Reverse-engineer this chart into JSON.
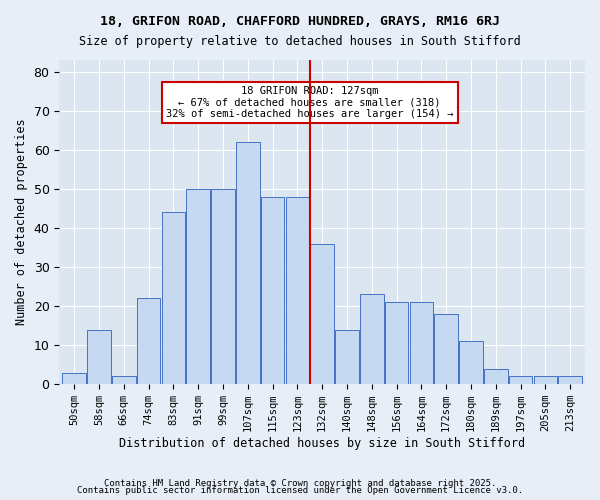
{
  "title1": "18, GRIFON ROAD, CHAFFORD HUNDRED, GRAYS, RM16 6RJ",
  "title2": "Size of property relative to detached houses in South Stifford",
  "xlabel": "Distribution of detached houses by size in South Stifford",
  "ylabel": "Number of detached properties",
  "footnote1": "Contains HM Land Registry data © Crown copyright and database right 2025.",
  "footnote2": "Contains public sector information licensed under the Open Government Licence v3.0.",
  "bar_labels": [
    "50sqm",
    "58sqm",
    "66sqm",
    "74sqm",
    "83sqm",
    "91sqm",
    "99sqm",
    "107sqm",
    "115sqm",
    "123sqm",
    "132sqm",
    "140sqm",
    "148sqm",
    "156sqm",
    "164sqm",
    "172sqm",
    "180sqm",
    "189sqm",
    "197sqm",
    "205sqm",
    "213sqm"
  ],
  "bar_values": [
    3,
    14,
    2,
    22,
    44,
    50,
    50,
    62,
    48,
    48,
    36,
    14,
    23,
    21,
    21,
    18,
    11,
    4,
    2,
    2,
    2
  ],
  "bar_color": "#c6d9f0",
  "bar_edgecolor": "#4472c4",
  "vline_x": 9.5,
  "vline_color": "#cc0000",
  "annotation_title": "18 GRIFON ROAD: 127sqm",
  "annotation_line1": "← 67% of detached houses are smaller (318)",
  "annotation_line2": "32% of semi-detached houses are larger (154) →",
  "annotation_box_color": "#cc0000",
  "ylim": [
    0,
    83
  ],
  "yticks": [
    0,
    10,
    20,
    30,
    40,
    50,
    60,
    70,
    80
  ],
  "bg_color": "#e8eef7",
  "plot_bg_color": "#dce6f1"
}
